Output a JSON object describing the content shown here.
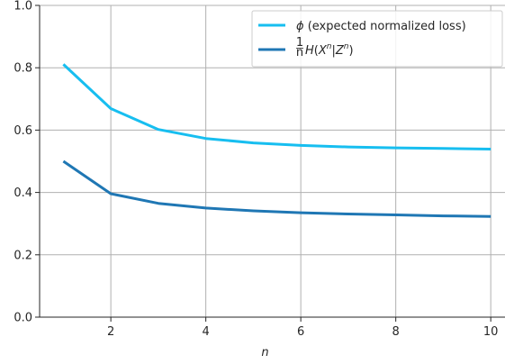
{
  "chart_data": {
    "type": "line",
    "title": "",
    "xlabel": "n",
    "ylabel": "",
    "xlim": [
      0.5,
      10.3
    ],
    "ylim": [
      0.0,
      1.0
    ],
    "xticks": [
      2,
      4,
      6,
      8,
      10
    ],
    "yticks": [
      0.0,
      0.2,
      0.4,
      0.6,
      0.8,
      1.0
    ],
    "xtick_labels": [
      "2",
      "4",
      "6",
      "8",
      "10"
    ],
    "ytick_labels": [
      "0.0",
      "0.2",
      "0.4",
      "0.6",
      "0.8",
      "1.0"
    ],
    "grid": true,
    "legend_position": "top-right",
    "x": [
      1,
      2,
      3,
      4,
      5,
      6,
      7,
      8,
      9,
      10
    ],
    "series": [
      {
        "name": "ϕ (expected normalized loss)",
        "color": "#17BEF0",
        "values": [
          0.811,
          0.669,
          0.602,
          0.573,
          0.559,
          0.551,
          0.546,
          0.543,
          0.541,
          0.539
        ]
      },
      {
        "name": "1/n H(X^n|Z^n)",
        "color": "#1F77B4",
        "values": [
          0.5,
          0.396,
          0.365,
          0.35,
          0.341,
          0.335,
          0.331,
          0.328,
          0.325,
          0.323
        ]
      }
    ],
    "legend": {
      "entry1": {
        "symbol": "ϕ",
        "text": " (expected normalized loss)"
      },
      "entry2": {
        "frac_num": "1",
        "frac_den": "n",
        "H": "H",
        "open": "(",
        "X": "X",
        "sup1": "n",
        "bar": "|",
        "Z": "Z",
        "sup2": "n",
        "close": ")"
      }
    }
  }
}
